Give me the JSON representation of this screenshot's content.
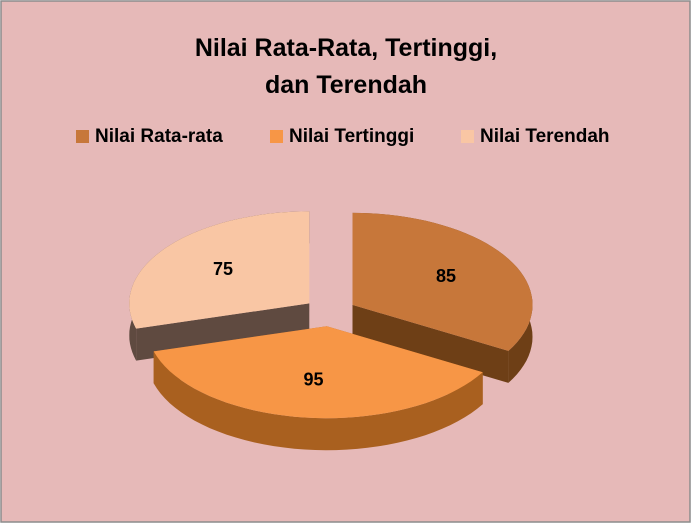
{
  "chart_data": {
    "type": "pie3d",
    "title": [
      "Nilai Rata-Rata, Tertinggi,",
      "dan Terendah"
    ],
    "categories": [
      "Nilai Rata-rata",
      "Nilai Tertinggi",
      "Nilai Terendah"
    ],
    "values": [
      85,
      95,
      75
    ],
    "colors": [
      "#c7773a",
      "#f79646",
      "#f9c6a4"
    ],
    "side_colors": [
      "#6e3f16",
      "#a9601f",
      "#5f4a40"
    ],
    "legend": "top"
  }
}
